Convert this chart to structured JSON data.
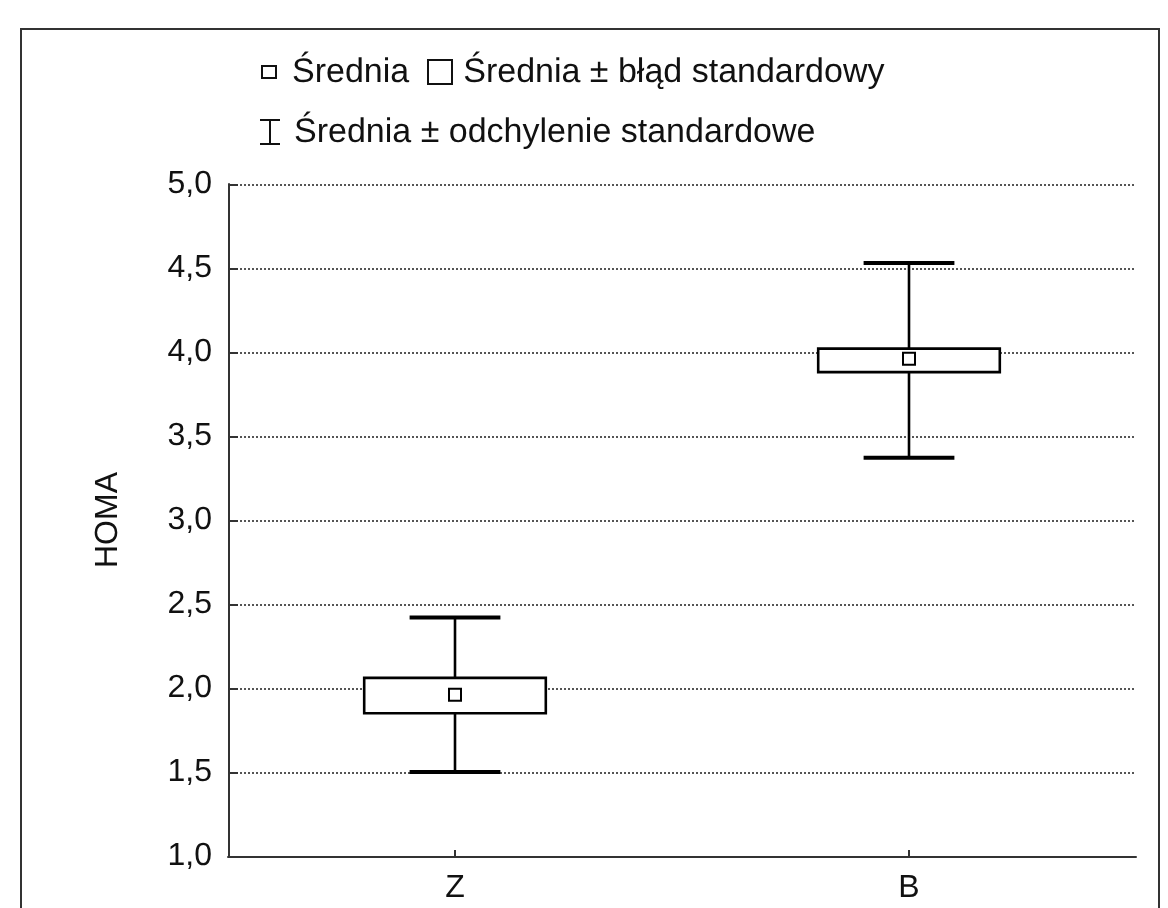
{
  "chart_data": {
    "type": "box",
    "ylabel": "HOMA",
    "categories": [
      "Z",
      "B"
    ],
    "boxes": [
      {
        "low": 1.5,
        "q1": 1.85,
        "median": 1.96,
        "q3": 2.06,
        "high": 2.42
      },
      {
        "low": 3.37,
        "q1": 3.88,
        "median": 3.96,
        "q3": 4.02,
        "high": 4.53
      }
    ],
    "color": "#000000",
    "ylim": [
      1.0,
      5.0
    ],
    "yticks": [
      {
        "value": 1.0,
        "label": "1,0"
      },
      {
        "value": 1.5,
        "label": "1,5"
      },
      {
        "value": 2.0,
        "label": "2,0"
      },
      {
        "value": 2.5,
        "label": "2,5"
      },
      {
        "value": 3.0,
        "label": "3,0"
      },
      {
        "value": 3.5,
        "label": "3,5"
      },
      {
        "value": 4.0,
        "label": "4,0"
      },
      {
        "value": 4.5,
        "label": "4,5"
      },
      {
        "value": 5.0,
        "label": "5,0"
      }
    ],
    "grid": "y",
    "annotations": [
      "Średnia",
      "Średnia ± błąd standardowy",
      "Średnia ± odchylenie standardowe"
    ]
  }
}
